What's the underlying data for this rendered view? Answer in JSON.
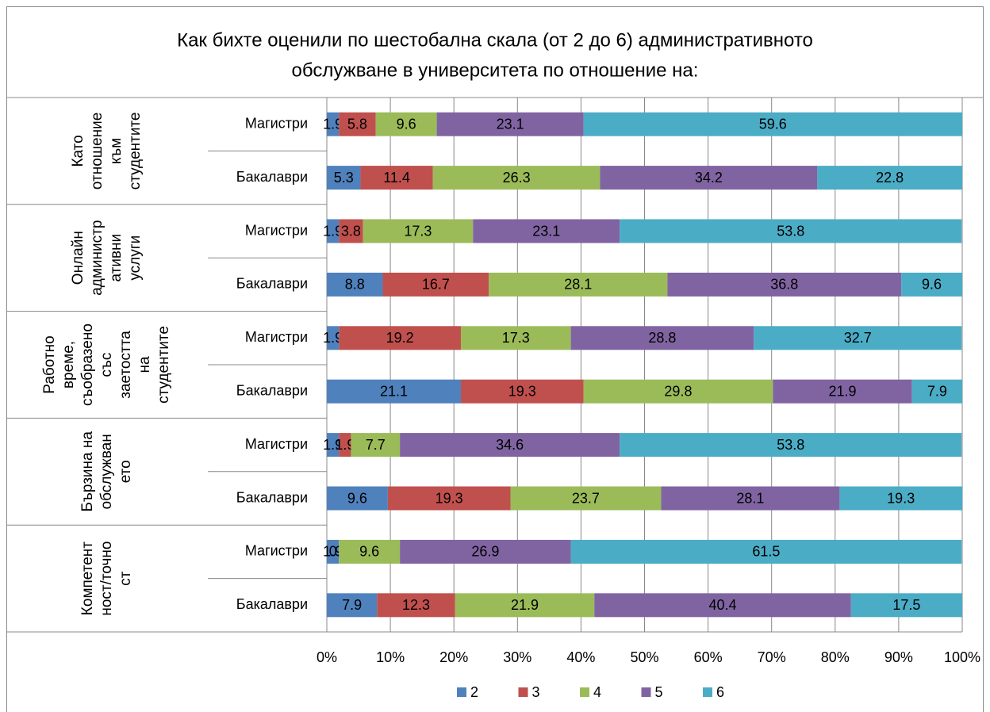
{
  "chart_data": {
    "type": "bar_stacked_horizontal",
    "title": [
      "Как бихте оценили по шестобална скала (от 2 до 6) административното",
      "обслужване в университета по отношение на:"
    ],
    "groups": [
      {
        "label": [
          "Като",
          "отношение",
          "към",
          "студентите"
        ],
        "categories": [
          "Магистри",
          "Бакалаври"
        ]
      },
      {
        "label": [
          "Онлайн",
          "администр",
          "ативни",
          "услуги"
        ],
        "categories": [
          "Магистри",
          "Бакалаври"
        ]
      },
      {
        "label": [
          "Работно",
          "време,",
          "съобразено",
          "със",
          "заетостта",
          "на",
          "студентите"
        ],
        "categories": [
          "Магистри",
          "Бакалаври"
        ]
      },
      {
        "label": [
          "Бързина на",
          "обслужван",
          "ето"
        ],
        "categories": [
          "Магистри",
          "Бакалаври"
        ]
      },
      {
        "label": [
          "Компетент",
          "ност/точно",
          "ст"
        ],
        "categories": [
          "Магистри",
          "Бакалаври"
        ]
      }
    ],
    "series": [
      {
        "name": "2",
        "color": "#4f81bd",
        "values": [
          1.9,
          5.3,
          1.9,
          8.8,
          1.9,
          21.1,
          1.9,
          9.6,
          1.9,
          7.9
        ]
      },
      {
        "name": "3",
        "color": "#c0504d",
        "values": [
          5.8,
          11.4,
          3.8,
          16.7,
          19.2,
          19.3,
          1.9,
          19.3,
          0,
          12.3
        ],
        "value_labels": [
          "5.8",
          "11.4",
          "3.8",
          "16.7",
          "19.2",
          "19.3",
          "1.9",
          "19.3",
          "0.0",
          "12.3"
        ]
      },
      {
        "name": "4",
        "color": "#9bbb59",
        "values": [
          9.6,
          26.3,
          17.3,
          28.1,
          17.3,
          29.8,
          7.7,
          23.7,
          9.6,
          21.9
        ]
      },
      {
        "name": "5",
        "color": "#8064a2",
        "values": [
          23.1,
          34.2,
          23.1,
          36.8,
          28.8,
          21.9,
          34.6,
          28.1,
          26.9,
          40.4
        ]
      },
      {
        "name": "6",
        "color": "#4bacc6",
        "values": [
          59.6,
          22.8,
          53.8,
          9.6,
          32.7,
          7.9,
          53.8,
          19.3,
          61.5,
          17.5
        ]
      }
    ],
    "xlim": [
      0,
      100
    ],
    "xticks": [
      {
        "value": 0,
        "label": "0%"
      },
      {
        "value": 10,
        "label": "10%"
      },
      {
        "value": 20,
        "label": "20%"
      },
      {
        "value": 30,
        "label": "30%"
      },
      {
        "value": 40,
        "label": "40%"
      },
      {
        "value": 50,
        "label": "50%"
      },
      {
        "value": 60,
        "label": "60%"
      },
      {
        "value": 70,
        "label": "70%"
      },
      {
        "value": 80,
        "label": "80%"
      },
      {
        "value": 90,
        "label": "90%"
      },
      {
        "value": 100,
        "label": "100%"
      }
    ],
    "grid": true,
    "legend": "bottom"
  }
}
